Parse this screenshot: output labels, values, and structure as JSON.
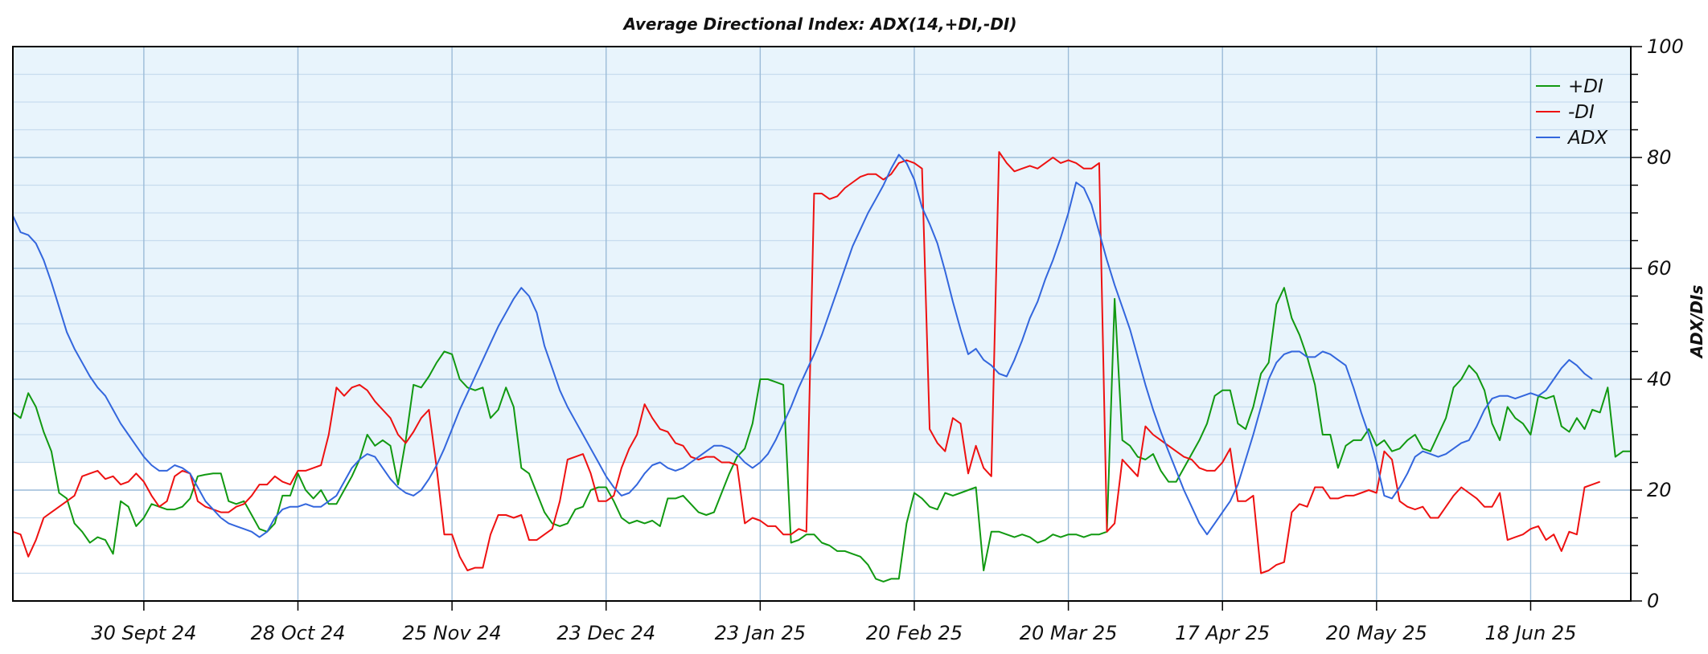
{
  "chart_data": {
    "type": "line",
    "title": "Average Directional Index: ADX(14,+DI,-DI)",
    "xlabel": "",
    "ylabel": "ADX/DIs",
    "ylim": [
      0,
      100
    ],
    "y_major_ticks": [
      0,
      20,
      40,
      60,
      80,
      100
    ],
    "y_minor_step": 5,
    "x_ticks": [
      {
        "label": "30 Sept 24",
        "index": 17
      },
      {
        "label": "28 Oct 24",
        "index": 37
      },
      {
        "label": "25 Nov 24",
        "index": 57
      },
      {
        "label": "23 Dec 24",
        "index": 77
      },
      {
        "label": "23 Jan 25",
        "index": 97
      },
      {
        "label": "20 Feb 25",
        "index": 117
      },
      {
        "label": "20 Mar 25",
        "index": 137
      },
      {
        "label": "17 Apr 25",
        "index": 157
      },
      {
        "label": "20 May 25",
        "index": 177
      },
      {
        "label": "18 Jun 25",
        "index": 197
      }
    ],
    "shaded_band": [
      25,
      100
    ],
    "grid": true,
    "legend_position": "top-right",
    "colors": {
      "plus_di": "#119911",
      "minus_di": "#ee1111",
      "adx": "#3366dd",
      "band_fill": "#e8f4fc",
      "major_grid": "#9bbbd8",
      "minor_grid": "#c7dcee"
    },
    "series": [
      {
        "name": "+DI",
        "key": "plus_di",
        "values": [
          34,
          33,
          37.5,
          35,
          30.5,
          27,
          19.5,
          18.5,
          14,
          12.5,
          10.5,
          11.5,
          11,
          8.5,
          18,
          17,
          13.5,
          15,
          17.5,
          17,
          16.5,
          16.5,
          17,
          18.5,
          22.5,
          22.8,
          23,
          23,
          18,
          17.5,
          18,
          15.5,
          13,
          12.5,
          14,
          19,
          19,
          23,
          20,
          18.5,
          20,
          17.5,
          17.5,
          20,
          22.5,
          25.5,
          30,
          28,
          29,
          28,
          21,
          29,
          39,
          38.5,
          40.5,
          43,
          45,
          44.5,
          40,
          38.5,
          38,
          38.5,
          33,
          34.5,
          38.5,
          35,
          24,
          23,
          19.5,
          16,
          14,
          13.5,
          14,
          16.5,
          17,
          20,
          20.5,
          20.5,
          18,
          15,
          14,
          14.5,
          14,
          14.5,
          13.5,
          18.5,
          18.5,
          19,
          17.5,
          16,
          15.5,
          16,
          19.5,
          23,
          26,
          27.5,
          32,
          40,
          40,
          39.5,
          39,
          10.5,
          11,
          12,
          12,
          10.5,
          10,
          9,
          9,
          8.5,
          8,
          6.5,
          4,
          3.5,
          4,
          4,
          14,
          19.5,
          18.5,
          17,
          16.5,
          19.5,
          19,
          19.5,
          20,
          20.5,
          5.5,
          12.5,
          12.5,
          12,
          11.5,
          12,
          11.5,
          10.5,
          11,
          12,
          11.5,
          12,
          12,
          11.5,
          12,
          12,
          12.5,
          54.5,
          29,
          28,
          26,
          25.5,
          26.5,
          23.5,
          21.5,
          21.5,
          24,
          26.5,
          29,
          32,
          37,
          38,
          38,
          32,
          31,
          35,
          41,
          43,
          53.5,
          56.5,
          51,
          48,
          44,
          39,
          30,
          30,
          24,
          28,
          29,
          29,
          31,
          28,
          29,
          27,
          27.5,
          29,
          30,
          27.5,
          27,
          30,
          33,
          38.5,
          40,
          42.5,
          41,
          38,
          32,
          29,
          35,
          33,
          32,
          30,
          37,
          36.5,
          37,
          31.5,
          30.5,
          33,
          31,
          34.5,
          34,
          38.5,
          26,
          27,
          27
        ]
      },
      {
        "name": "-DI",
        "key": "minus_di",
        "values": [
          12.5,
          12,
          8,
          11,
          15,
          16,
          17,
          18,
          19,
          22.5,
          23,
          23.5,
          22,
          22.5,
          21,
          21.5,
          23,
          21.5,
          19,
          17,
          18,
          22.5,
          23.5,
          23,
          18,
          17,
          16.5,
          16,
          16,
          17,
          17.5,
          19,
          21,
          21,
          22.5,
          21.5,
          21,
          23.5,
          23.5,
          24,
          24.5,
          30,
          38.5,
          37,
          38.5,
          39,
          38,
          36,
          34.5,
          33,
          30,
          28.5,
          30.5,
          33,
          34.5,
          24,
          12,
          12,
          8,
          5.5,
          6,
          6,
          12,
          15.5,
          15.5,
          15,
          15.5,
          11,
          11,
          12,
          13,
          18,
          25.5,
          26,
          26.5,
          23,
          18,
          18,
          19,
          24,
          27.5,
          30,
          35.5,
          33,
          31,
          30.5,
          28.5,
          28,
          26,
          25.5,
          26,
          26,
          25,
          25,
          24.5,
          14,
          15,
          14.5,
          13.5,
          13.5,
          12,
          12,
          13,
          12.5,
          73.5,
          73.5,
          72.5,
          73,
          74.5,
          75.5,
          76.5,
          77,
          77,
          76,
          77,
          79,
          79.5,
          79,
          78,
          31,
          28.5,
          27,
          33,
          32,
          23,
          28,
          24,
          22.5,
          81,
          79,
          77.5,
          78,
          78.5,
          78,
          79,
          80,
          79,
          79.5,
          79,
          78,
          78,
          79,
          12.5,
          14,
          25.5,
          24,
          22.5,
          31.5,
          30,
          29,
          28,
          27,
          26,
          25.5,
          24,
          23.5,
          23.5,
          25,
          27.5,
          18,
          18,
          19,
          5,
          5.5,
          6.5,
          7,
          16,
          17.5,
          17,
          20.5,
          20.5,
          18.5,
          18.5,
          19,
          19,
          19.5,
          20,
          19.5,
          27,
          25.5,
          18,
          17,
          16.5,
          17,
          15,
          15,
          17,
          19,
          20.5,
          19.5,
          18.5,
          17,
          17,
          19.5,
          11,
          11.5,
          12,
          13,
          13.5,
          11,
          12,
          9,
          12.5,
          12,
          20.5,
          21,
          21.5
        ]
      },
      {
        "name": "ADX",
        "key": "adx",
        "values": [
          69.5,
          66.5,
          66,
          64.5,
          61.5,
          57.5,
          53,
          48.5,
          45.5,
          43,
          40.5,
          38.5,
          37,
          34.5,
          32,
          30,
          28,
          26,
          24.5,
          23.5,
          23.5,
          24.5,
          24,
          23,
          20.5,
          18,
          16.5,
          15,
          14,
          13.5,
          13,
          12.5,
          11.5,
          12.5,
          15,
          16.5,
          17,
          17,
          17.5,
          17,
          17,
          18,
          19,
          21.5,
          24,
          25.5,
          26.5,
          26,
          24,
          22,
          20.5,
          19.5,
          19,
          20,
          22,
          24.5,
          27.5,
          31,
          34.5,
          37.5,
          40.5,
          43.5,
          46.5,
          49.5,
          52,
          54.5,
          56.5,
          55,
          52,
          46,
          42,
          38,
          35,
          32.5,
          30,
          27.5,
          25,
          22.5,
          20.5,
          19,
          19.5,
          21,
          23,
          24.5,
          25,
          24,
          23.5,
          24,
          25,
          26,
          27,
          28,
          28,
          27.5,
          26.5,
          25,
          24,
          25,
          26.5,
          29,
          32,
          35,
          38.5,
          41.5,
          44.5,
          48,
          52,
          56,
          60,
          64,
          67,
          70,
          72.5,
          75,
          78,
          80.5,
          79,
          76,
          71,
          68,
          64.5,
          59.5,
          54,
          49,
          44.5,
          45.5,
          43.5,
          42.5,
          41,
          40.5,
          43.5,
          47,
          51,
          54,
          58,
          61.5,
          65.5,
          70,
          75.5,
          74.5,
          71.5,
          66.5,
          61.5,
          57,
          53,
          49,
          44,
          39,
          34.5,
          30.5,
          27,
          23.5,
          20,
          17,
          14,
          12,
          14,
          16,
          18,
          21,
          25.5,
          30,
          35,
          40,
          43,
          44.5,
          45,
          45,
          44,
          44,
          45,
          44.5,
          43.5,
          42.5,
          38.5,
          34,
          30,
          25,
          19,
          18.5,
          20.5,
          23,
          26,
          27,
          26.5,
          26,
          26.5,
          27.5,
          28.5,
          29,
          31.5,
          34.5,
          36.5,
          37,
          37,
          36.5,
          37,
          37.5,
          37,
          38,
          40,
          42,
          43.5,
          42.5,
          41,
          40
        ]
      }
    ]
  }
}
